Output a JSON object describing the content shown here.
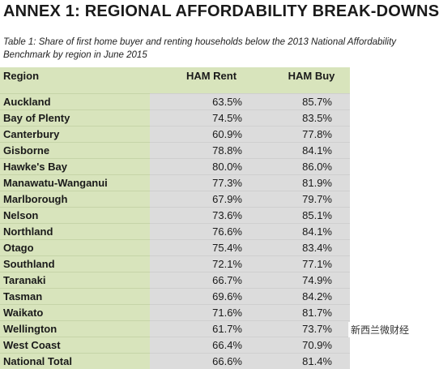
{
  "header": {
    "title": "ANNEX 1: REGIONAL AFFORDABILITY BREAK-DOWNS",
    "caption": "Table 1: Share of first home buyer and renting households below the 2013 National Affordability Benchmark by region in June 2015"
  },
  "table": {
    "columns": [
      "Region",
      "HAM Rent",
      "HAM Buy"
    ],
    "rows": [
      [
        "Auckland",
        "63.5%",
        "85.7%"
      ],
      [
        "Bay of Plenty",
        "74.5%",
        "83.5%"
      ],
      [
        "Canterbury",
        "60.9%",
        "77.8%"
      ],
      [
        "Gisborne",
        "78.8%",
        "84.1%"
      ],
      [
        "Hawke's Bay",
        "80.0%",
        "86.0%"
      ],
      [
        "Manawatu-Wanganui",
        "77.3%",
        "81.9%"
      ],
      [
        "Marlborough",
        "67.9%",
        "79.7%"
      ],
      [
        "Nelson",
        "73.6%",
        "85.1%"
      ],
      [
        "Northland",
        "76.6%",
        "84.1%"
      ],
      [
        "Otago",
        "75.4%",
        "83.4%"
      ],
      [
        "Southland",
        "72.1%",
        "77.1%"
      ],
      [
        "Taranaki",
        "66.7%",
        "74.9%"
      ],
      [
        "Tasman",
        "69.6%",
        "84.2%"
      ],
      [
        "Waikato",
        "71.6%",
        "81.7%"
      ],
      [
        "Wellington",
        "61.7%",
        "73.7%"
      ],
      [
        "West Coast",
        "66.4%",
        "70.9%"
      ],
      [
        "National Total",
        "66.6%",
        "81.4%"
      ]
    ]
  },
  "watermark": "新西兰微财经"
}
